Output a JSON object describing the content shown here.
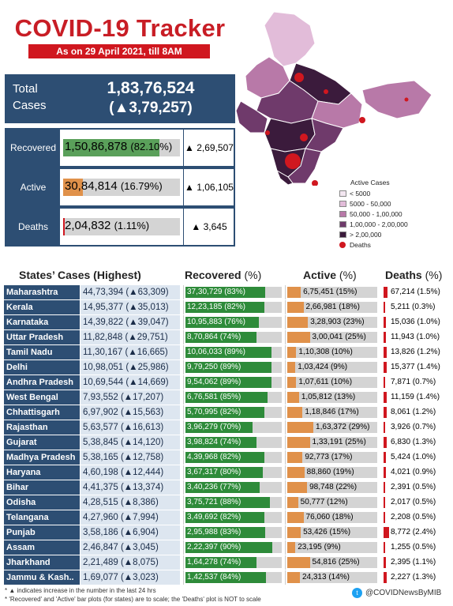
{
  "title": "COVID-19 Tracker",
  "date": "As on 29 April 2021, till 8AM",
  "total": {
    "label": "Total Cases",
    "value": "1,83,76,524",
    "delta": "(▲3,79,257)"
  },
  "summary": [
    {
      "label": "Recovered",
      "value": "1,50,86,878",
      "pct": "(82.10%)",
      "delta": "▲ 2,69,507",
      "fraction": 0.821,
      "color": "#5aa05a"
    },
    {
      "label": "Active",
      "value": "30,84,814",
      "pct": "(16.79%)",
      "delta": "▲ 1,06,105",
      "fraction": 0.1679,
      "color": "#e0914a"
    },
    {
      "label": "Deaths",
      "value": "2,04,832",
      "pct": "(1.11%)",
      "delta": "▲ 3,645",
      "fraction": 0.0111,
      "color": "#d0171f"
    }
  ],
  "legend": {
    "title": "Active Cases",
    "items": [
      {
        "label": "< 5000",
        "color": "#f3e7f1"
      },
      {
        "label": "5000 - 50,000",
        "color": "#e2bcd9"
      },
      {
        "label": "50,000 - 1,00,000",
        "color": "#b879a8"
      },
      {
        "label": "1,00,000 - 2,00,000",
        "color": "#6f3a6b"
      },
      {
        "label": "> 2,00,000",
        "color": "#3b1b3c"
      }
    ],
    "deaths_label": "Deaths"
  },
  "headers": {
    "states": "States’ Cases (Highest)",
    "recovered": "Recovered",
    "active": "Active",
    "deaths": "Deaths",
    "pct": "(%)"
  },
  "states": [
    {
      "name": "Maharashtra",
      "cases": "44,73,394 (▲63,309)",
      "rec": "37,30,729 (83%)",
      "rec_f": 0.83,
      "act": "6,75,451 (15%)",
      "act_f": 0.15,
      "dth": "67,214 (1.5%)",
      "dth_f": 0.015
    },
    {
      "name": "Kerala",
      "cases": "14,95,377 (▲35,013)",
      "rec": "12,23,185 (82%)",
      "rec_f": 0.82,
      "act": "2,66,981 (18%)",
      "act_f": 0.18,
      "dth": "5,211 (0.3%)",
      "dth_f": 0.003
    },
    {
      "name": "Karnataka",
      "cases": "14,39,822 (▲39,047)",
      "rec": "10,95,883 (76%)",
      "rec_f": 0.76,
      "act": "3,28,903 (23%)",
      "act_f": 0.23,
      "dth": "15,036 (1.0%)",
      "dth_f": 0.01
    },
    {
      "name": "Uttar Pradesh",
      "cases": "11,82,848 (▲29,751)",
      "rec": "8,70,864 (74%)",
      "rec_f": 0.74,
      "act": "3,00,041 (25%)",
      "act_f": 0.25,
      "dth": "11,943 (1.0%)",
      "dth_f": 0.01
    },
    {
      "name": "Tamil Nadu",
      "cases": "11,30,167 (▲16,665)",
      "rec": "10,06,033 (89%)",
      "rec_f": 0.89,
      "act": "1,10,308 (10%)",
      "act_f": 0.1,
      "dth": "13,826 (1.2%)",
      "dth_f": 0.012
    },
    {
      "name": "Delhi",
      "cases": "10,98,051 (▲25,986)",
      "rec": "9,79,250 (89%)",
      "rec_f": 0.89,
      "act": "1,03,424 (9%)",
      "act_f": 0.09,
      "dth": "15,377 (1.4%)",
      "dth_f": 0.014
    },
    {
      "name": "Andhra Pradesh",
      "cases": "10,69,544 (▲14,669)",
      "rec": "9,54,062 (89%)",
      "rec_f": 0.89,
      "act": "1,07,611 (10%)",
      "act_f": 0.1,
      "dth": "7,871 (0.7%)",
      "dth_f": 0.007
    },
    {
      "name": "West Bengal",
      "cases": "7,93,552 (▲17,207)",
      "rec": "6,76,581 (85%)",
      "rec_f": 0.85,
      "act": "1,05,812 (13%)",
      "act_f": 0.13,
      "dth": "11,159 (1.4%)",
      "dth_f": 0.014
    },
    {
      "name": "Chhattisgarh",
      "cases": "6,97,902 (▲15,563)",
      "rec": "5,70,995 (82%)",
      "rec_f": 0.82,
      "act": "1,18,846 (17%)",
      "act_f": 0.17,
      "dth": "8,061 (1.2%)",
      "dth_f": 0.012
    },
    {
      "name": "Rajasthan",
      "cases": "5,63,577 (▲16,613)",
      "rec": "3,96,279 (70%)",
      "rec_f": 0.7,
      "act": "1,63,372 (29%)",
      "act_f": 0.29,
      "dth": "3,926 (0.7%)",
      "dth_f": 0.007
    },
    {
      "name": "Gujarat",
      "cases": "5,38,845 (▲14,120)",
      "rec": "3,98,824 (74%)",
      "rec_f": 0.74,
      "act": "1,33,191 (25%)",
      "act_f": 0.25,
      "dth": "6,830 (1.3%)",
      "dth_f": 0.013
    },
    {
      "name": "Madhya Pradesh",
      "cases": "5,38,165 (▲12,758)",
      "rec": "4,39,968 (82%)",
      "rec_f": 0.82,
      "act": "92,773 (17%)",
      "act_f": 0.17,
      "dth": "5,424 (1.0%)",
      "dth_f": 0.01
    },
    {
      "name": "Haryana",
      "cases": "4,60,198 (▲12,444)",
      "rec": "3,67,317 (80%)",
      "rec_f": 0.8,
      "act": "88,860 (19%)",
      "act_f": 0.19,
      "dth": "4,021 (0.9%)",
      "dth_f": 0.009
    },
    {
      "name": "Bihar",
      "cases": "4,41,375 (▲13,374)",
      "rec": "3,40,236 (77%)",
      "rec_f": 0.77,
      "act": "98,748 (22%)",
      "act_f": 0.22,
      "dth": "2,391 (0.5%)",
      "dth_f": 0.005
    },
    {
      "name": "Odisha",
      "cases": "4,28,515 (▲8,386)",
      "rec": "3,75,721 (88%)",
      "rec_f": 0.88,
      "act": "50,777 (12%)",
      "act_f": 0.12,
      "dth": "2,017 (0.5%)",
      "dth_f": 0.005
    },
    {
      "name": "Telangana",
      "cases": "4,27,960 (▲7,994)",
      "rec": "3,49,692 (82%)",
      "rec_f": 0.82,
      "act": "76,060 (18%)",
      "act_f": 0.18,
      "dth": "2,208 (0.5%)",
      "dth_f": 0.005
    },
    {
      "name": "Punjab",
      "cases": "3,58,186 (▲6,904)",
      "rec": "2,95,988 (83%)",
      "rec_f": 0.83,
      "act": "53,426 (15%)",
      "act_f": 0.15,
      "dth": "8,772 (2.4%)",
      "dth_f": 0.024
    },
    {
      "name": "Assam",
      "cases": "2,46,847 (▲3,045)",
      "rec": "2,22,397 (90%)",
      "rec_f": 0.9,
      "act": "23,195 (9%)",
      "act_f": 0.09,
      "dth": "1,255 (0.5%)",
      "dth_f": 0.005
    },
    {
      "name": "Jharkhand",
      "cases": "2,21,489 (▲8,075)",
      "rec": "1,64,278 (74%)",
      "rec_f": 0.74,
      "act": "54,816 (25%)",
      "act_f": 0.25,
      "dth": "2,395 (1.1%)",
      "dth_f": 0.011
    },
    {
      "name": "Jammu & Kash..",
      "cases": "1,69,077 (▲3,023)",
      "rec": "1,42,537 (84%)",
      "rec_f": 0.84,
      "act": "24,313 (14%)",
      "act_f": 0.14,
      "dth": "2,227 (1.3%)",
      "dth_f": 0.013
    }
  ],
  "footnote1": "* ▲ indicates increase in the number in the last 24 hrs",
  "footnote2": "* 'Recovered' and 'Active' bar plots (for states) are to scale; the 'Deaths' plot is NOT to scale",
  "handle": "@COVIDNewsByMIB",
  "colors": {
    "navy": "#2d4e73",
    "recovered": "#2e8b3a",
    "active": "#e0914a",
    "deaths": "#d0171f",
    "title": "#c81d25"
  }
}
